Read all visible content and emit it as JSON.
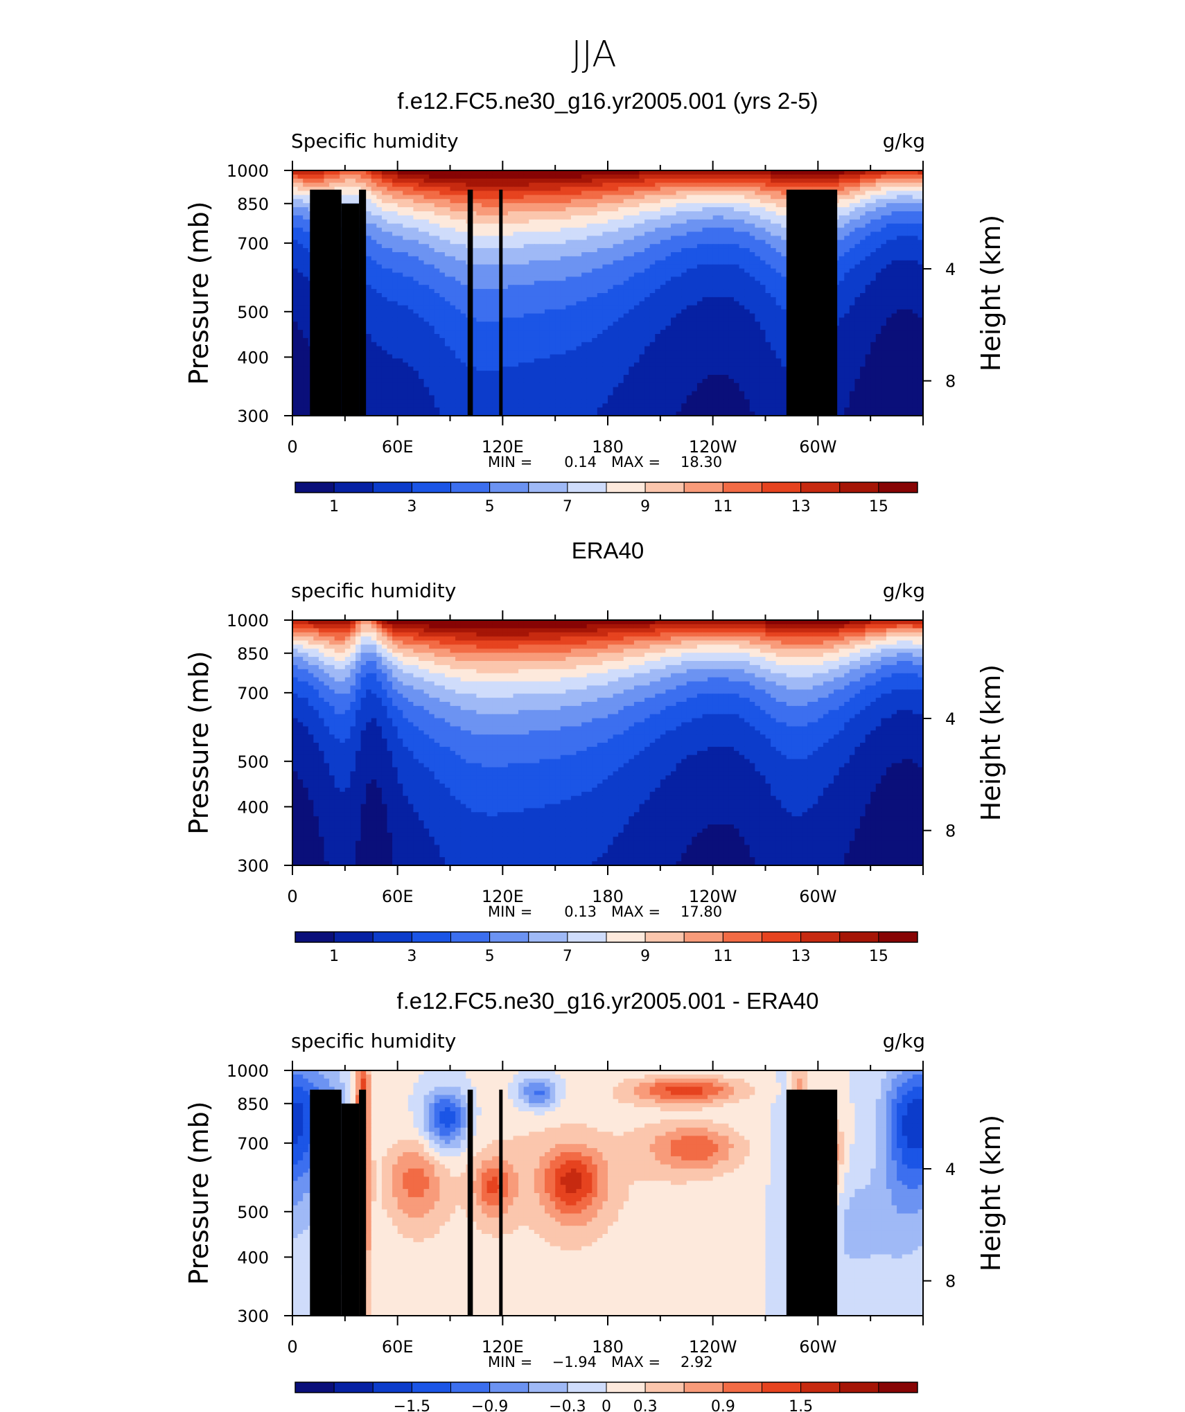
{
  "figure": {
    "title": "JJA"
  },
  "colors": {
    "humidity_levels": [
      "#0a0f7a",
      "#0621a3",
      "#0c3ccb",
      "#1b55e6",
      "#3c6fef",
      "#6c93f2",
      "#9fb9f6",
      "#cfdcfb",
      "#fde9dc",
      "#fbc6ad",
      "#f89b7a",
      "#f26b45",
      "#e6431f",
      "#c72a10",
      "#a51506",
      "#870404"
    ],
    "diff_levels": [
      "#0a0f7a",
      "#0621a3",
      "#0c3ccb",
      "#1b55e6",
      "#3c6fef",
      "#6c93f2",
      "#9fb9f6",
      "#cfdcfb",
      "#fde9dc",
      "#fbc6ad",
      "#f89b7a",
      "#f26b45",
      "#e6431f",
      "#c72a10",
      "#a51506",
      "#870404"
    ],
    "terrain": "#000000"
  },
  "chart_data": [
    {
      "type": "heatmap",
      "title": "f.e12.FC5.ne30_g16.yr2005.001 (yrs 2-5)",
      "left_label": "Specific humidity",
      "right_label": "g/kg",
      "ylabel": "Pressure (mb)",
      "ylabel_right": "Height (km)",
      "x_ticks": [
        "0",
        "60E",
        "120E",
        "180",
        "120W",
        "60W"
      ],
      "y_ticks": [
        "300",
        "400",
        "500",
        "700",
        "850",
        "1000"
      ],
      "y_right_ticks": [
        "8",
        "4"
      ],
      "x_range": [
        0,
        360
      ],
      "y_range": [
        1000,
        300
      ],
      "min_label": "MIN =",
      "min": "0.14",
      "max_label": "MAX =",
      "max": "18.30",
      "levels": [
        1,
        2,
        3,
        4,
        5,
        6,
        7,
        8,
        9,
        10,
        11,
        12,
        13,
        14,
        15
      ],
      "colorbar_labels": [
        "1",
        "3",
        "5",
        "7",
        "9",
        "11",
        "13",
        "15"
      ],
      "terrain": true
    },
    {
      "type": "heatmap",
      "title": "ERA40",
      "left_label": "specific humidity",
      "right_label": "g/kg",
      "ylabel": "Pressure (mb)",
      "ylabel_right": "Height (km)",
      "x_ticks": [
        "0",
        "60E",
        "120E",
        "180",
        "120W",
        "60W"
      ],
      "y_ticks": [
        "300",
        "400",
        "500",
        "700",
        "850",
        "1000"
      ],
      "y_right_ticks": [
        "8",
        "4"
      ],
      "x_range": [
        0,
        360
      ],
      "y_range": [
        1000,
        300
      ],
      "min_label": "MIN =",
      "min": "0.13",
      "max_label": "MAX =",
      "max": "17.80",
      "levels": [
        1,
        2,
        3,
        4,
        5,
        6,
        7,
        8,
        9,
        10,
        11,
        12,
        13,
        14,
        15
      ],
      "colorbar_labels": [
        "1",
        "3",
        "5",
        "7",
        "9",
        "11",
        "13",
        "15"
      ],
      "terrain": false
    },
    {
      "type": "heatmap",
      "title": "f.e12.FC5.ne30_g16.yr2005.001 - ERA40",
      "left_label": "specific humidity",
      "right_label": "g/kg",
      "ylabel": "Pressure (mb)",
      "ylabel_right": "Height (km)",
      "x_ticks": [
        "0",
        "60E",
        "120E",
        "180",
        "120W",
        "60W"
      ],
      "y_ticks": [
        "300",
        "400",
        "500",
        "700",
        "850",
        "1000"
      ],
      "y_right_ticks": [
        "8",
        "4"
      ],
      "x_range": [
        0,
        360
      ],
      "y_range": [
        1000,
        300
      ],
      "min_label": "MIN =",
      "min": "−1.94",
      "max_label": "MAX =",
      "max": "2.92",
      "levels": [
        -2.1,
        -1.8,
        -1.5,
        -1.2,
        -0.9,
        -0.6,
        -0.3,
        0,
        0.3,
        0.6,
        0.9,
        1.2,
        1.5,
        1.8,
        2.1
      ],
      "colorbar_labels": [
        "−1.5",
        "−0.9",
        "−0.3",
        "0",
        "0.3",
        "0.9",
        "1.5"
      ],
      "terrain": true
    }
  ]
}
